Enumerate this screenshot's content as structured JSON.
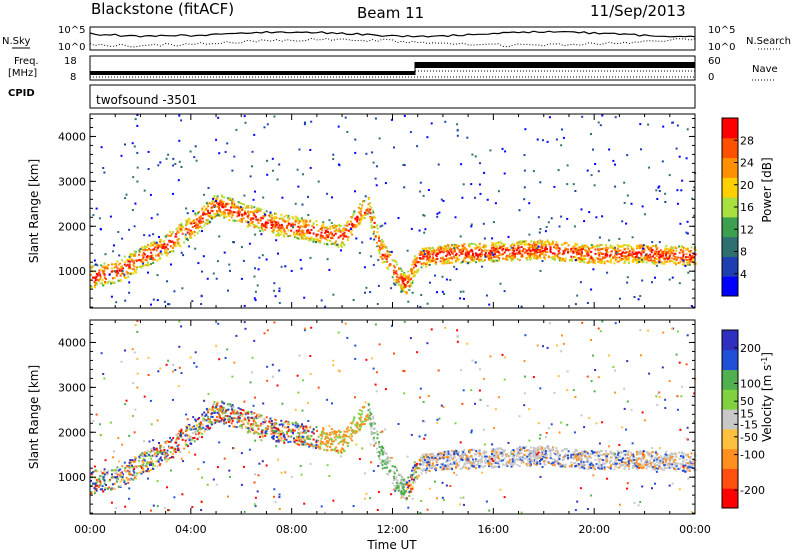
{
  "header": {
    "title": "Blackstone (fitACF)",
    "beam": "Beam 11",
    "date": "11/Sep/2013"
  },
  "noise_panel": {
    "left_label": "N.Sky",
    "right_label": "N.Search",
    "left_ticks": [
      "10^5",
      "10^0"
    ],
    "right_ticks": [
      "10^5",
      "10^0"
    ]
  },
  "freq_panel": {
    "left_label_1": "Freq.",
    "left_label_2": "[MHz]",
    "right_label": "Nave",
    "left_ticks": [
      "18",
      "8"
    ],
    "right_ticks": [
      "60",
      "0"
    ]
  },
  "cpid_panel": {
    "label": "CPID",
    "program": "twofsound  -3501"
  },
  "colors": {
    "power_scale": [
      "#0000ff",
      "#1f3fb0",
      "#2e6f70",
      "#3da050",
      "#a8e040",
      "#ffd000",
      "#ff9000",
      "#ff5000",
      "#ff0000"
    ],
    "velocity_scale": [
      "#3030c0",
      "#2050d8",
      "#50b050",
      "#80d040",
      "#c8c8c8",
      "#ffc040",
      "#ff9020",
      "#ff5010",
      "#ff0000"
    ]
  },
  "chart_data": [
    {
      "type": "heatmap",
      "name": "power",
      "xlabel": "",
      "ylabel": "Slant Range [km]",
      "xlim": [
        0,
        24
      ],
      "ylim": [
        180,
        4500
      ],
      "yticks": [
        1000,
        2000,
        3000,
        4000
      ],
      "colorbar": {
        "label": "Power [dB]",
        "ticks": [
          4,
          8,
          12,
          16,
          20,
          24,
          28
        ],
        "range": [
          0,
          32
        ]
      },
      "echo_bands": [
        {
          "t": [
            0,
            1,
            2,
            3,
            4,
            5,
            6,
            7,
            8,
            9,
            10,
            11,
            11.5,
            12,
            12.5,
            13,
            14,
            16,
            18,
            20,
            22,
            24
          ],
          "center_km": [
            900,
            1000,
            1300,
            1600,
            2000,
            2500,
            2300,
            2100,
            2000,
            1900,
            1800,
            2500,
            1500,
            1100,
            700,
            1300,
            1400,
            1450,
            1500,
            1400,
            1400,
            1350
          ]
        }
      ]
    },
    {
      "type": "heatmap",
      "name": "velocity",
      "xlabel": "Time UT",
      "ylabel": "Slant Range [km]",
      "xlim": [
        0,
        24
      ],
      "ylim": [
        180,
        4500
      ],
      "xticks": [
        "00:00",
        "04:00",
        "08:00",
        "12:00",
        "16:00",
        "20:00",
        "00:00"
      ],
      "yticks": [
        1000,
        2000,
        3000,
        4000
      ],
      "colorbar": {
        "label": "Velocity [m s",
        "label_sup": "-1",
        "label_end": "]",
        "ticks": [
          200,
          100,
          50,
          15,
          -15,
          -50,
          -100,
          -200
        ],
        "range": [
          -250,
          250
        ]
      }
    }
  ]
}
